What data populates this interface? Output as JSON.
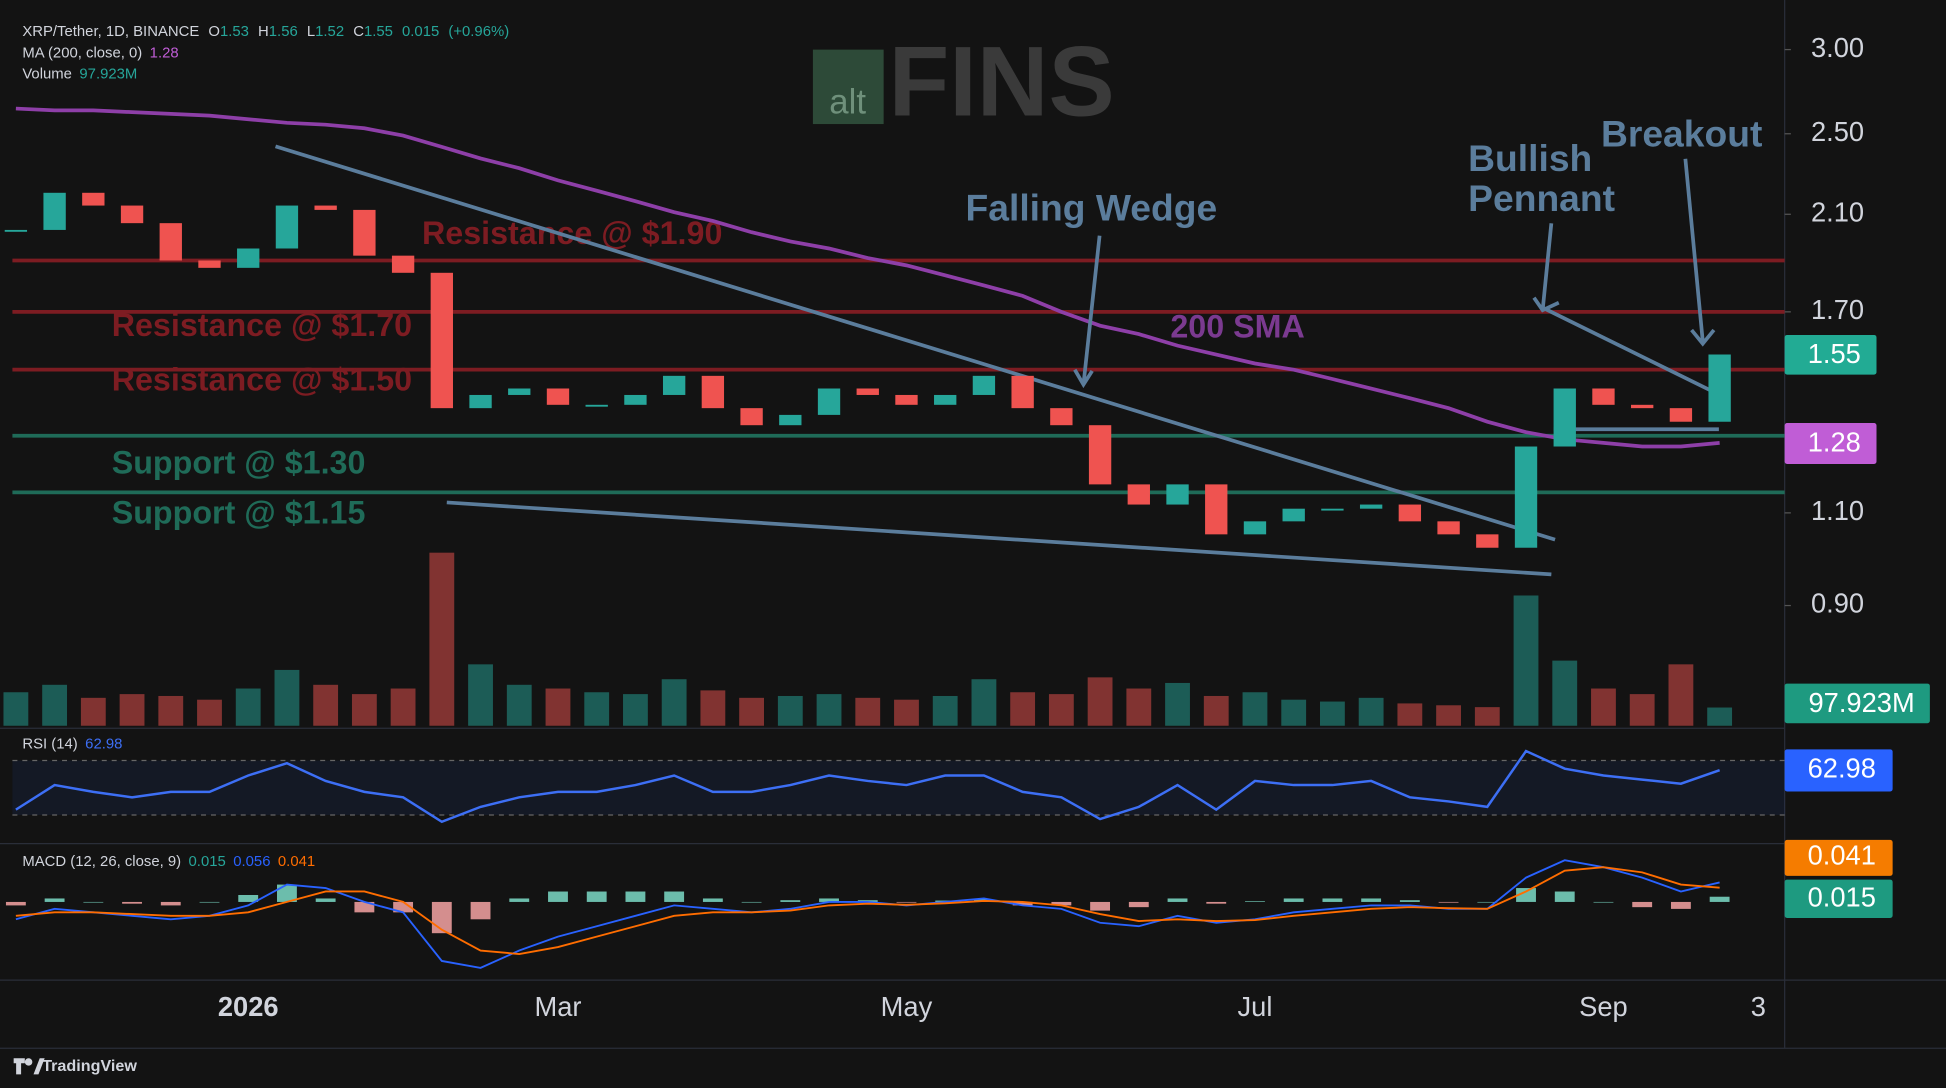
{
  "chart_data": {
    "type": "candlestick",
    "header": {
      "symbol": "XRP/Tether, 1D, BINANCE",
      "open_label": "O",
      "open": 1.53,
      "high_label": "H",
      "high": 1.56,
      "low_label": "L",
      "low": 1.52,
      "close_label": "C",
      "close": 1.55,
      "change": 0.015,
      "change_pct": "(+0.96%)"
    },
    "categories": [
      null,
      null,
      null,
      null,
      null,
      null,
      "2026",
      null,
      null,
      null,
      null,
      null,
      null,
      null,
      "Mar",
      null,
      null,
      null,
      null,
      null,
      null,
      null,
      null,
      "May",
      null,
      null,
      null,
      null,
      null,
      null,
      null,
      null,
      "Jul",
      null,
      null,
      null,
      null,
      null,
      null,
      null,
      null,
      "Sep",
      null,
      null,
      null,
      "3"
    ],
    "closes": [
      2.03,
      2.2,
      2.14,
      2.06,
      1.9,
      1.87,
      1.95,
      2.14,
      2.12,
      1.92,
      1.85,
      1.38,
      1.42,
      1.44,
      1.39,
      1.39,
      1.42,
      1.48,
      1.38,
      1.33,
      1.36,
      1.44,
      1.42,
      1.39,
      1.42,
      1.48,
      1.38,
      1.33,
      1.17,
      1.12,
      1.17,
      1.05,
      1.08,
      1.11,
      1.11,
      1.12,
      1.08,
      1.05,
      1.02,
      1.27,
      1.44,
      1.39,
      1.38,
      1.34,
      1.55,
      null
    ],
    "up_color": "#26a69a",
    "down_color": "#ef5350",
    "log_scale": true,
    "ylim": [
      0.69,
      3.34
    ],
    "yticks": [
      {
        "value": 3,
        "label": "3.00"
      },
      {
        "value": 2.5,
        "label": "2.50"
      },
      {
        "value": 2.1,
        "label": "2.10"
      },
      {
        "value": 1.7,
        "label": "1.70"
      },
      {
        "value": 1.1,
        "label": "1.10"
      },
      {
        "value": 0.9,
        "label": "0.90"
      }
    ],
    "grid": false,
    "ma": {
      "label": "MA (200, close, 0)",
      "color": "#8e3fa8",
      "values": [
        2.64,
        2.63,
        2.63,
        2.62,
        2.61,
        2.6,
        2.58,
        2.56,
        2.55,
        2.53,
        2.49,
        2.43,
        2.37,
        2.32,
        2.26,
        2.21,
        2.16,
        2.11,
        2.07,
        2.02,
        1.98,
        1.95,
        1.91,
        1.88,
        1.84,
        1.8,
        1.76,
        1.7,
        1.65,
        1.62,
        1.58,
        1.55,
        1.52,
        1.5,
        1.47,
        1.44,
        1.41,
        1.38,
        1.34,
        1.31,
        1.29,
        1.28,
        1.27,
        1.27,
        1.28,
        null
      ]
    },
    "volume": {
      "label": "Volume",
      "last_label": "97.923M",
      "ylim": [
        0,
        1200
      ],
      "values": [
        180,
        220,
        150,
        170,
        160,
        140,
        200,
        300,
        220,
        170,
        200,
        930,
        330,
        220,
        200,
        180,
        170,
        250,
        190,
        150,
        160,
        170,
        150,
        140,
        160,
        250,
        180,
        170,
        260,
        200,
        230,
        160,
        180,
        140,
        130,
        150,
        120,
        110,
        100,
        700,
        350,
        200,
        170,
        330,
        97.923,
        null
      ]
    },
    "levels": [
      {
        "label": "Resistance @ $1.90",
        "value": 1.9,
        "color": "#7d1c22"
      },
      {
        "label": "Resistance @ $1.70",
        "value": 1.7,
        "color": "#7d1c22"
      },
      {
        "label": "Resistance @ $1.50",
        "value": 1.5,
        "color": "#7d1c22"
      },
      {
        "label": "Support @ $1.30",
        "value": 1.3,
        "color": "#1f6b58"
      },
      {
        "label": "Support @ $1.15",
        "value": 1.15,
        "color": "#1f6b58"
      }
    ],
    "annotations": [
      "Falling Wedge",
      "200 SMA",
      "Bullish",
      "Pennant",
      "Breakout"
    ],
    "watermark": [
      "alt",
      "FINS"
    ],
    "rsi": {
      "label": "RSI (14)",
      "color": "#3d6ff5",
      "ylim": [
        9,
        91
      ],
      "bands": [
        30,
        70
      ],
      "values": [
        34,
        52,
        47,
        43,
        47,
        47,
        59,
        68,
        55,
        47,
        43,
        25,
        36,
        43,
        47,
        47,
        52,
        59,
        47,
        47,
        52,
        59,
        55,
        52,
        59,
        59,
        47,
        43,
        27,
        36,
        52,
        34,
        55,
        52,
        52,
        55,
        43,
        40,
        36,
        77,
        64,
        59,
        56,
        53,
        62.98,
        null
      ]
    },
    "macd": {
      "label": "MACD (12, 26, close, 9)",
      "macd_color": "#2962ff",
      "signal_color": "#ff6d00",
      "ylim": [
        -0.225,
        0.168
      ],
      "histogram": [
        -0.01,
        0.01,
        0,
        -0.005,
        -0.01,
        0,
        0.02,
        0.05,
        0.01,
        -0.03,
        -0.03,
        -0.09,
        -0.05,
        0.01,
        0.03,
        0.03,
        0.03,
        0.03,
        0.01,
        0,
        0.005,
        0.01,
        0.005,
        -0.002,
        0.004,
        0.007,
        -0.01,
        -0.01,
        -0.025,
        -0.015,
        0.01,
        -0.005,
        0.002,
        0.01,
        0.01,
        0.01,
        0.005,
        -0.002,
        0,
        0.04,
        0.03,
        0,
        -0.015,
        -0.02,
        0.015,
        null
      ],
      "macd": [
        -0.05,
        -0.02,
        -0.03,
        -0.04,
        -0.05,
        -0.04,
        -0.01,
        0.05,
        0.04,
        0,
        -0.03,
        -0.17,
        -0.19,
        -0.14,
        -0.1,
        -0.07,
        -0.04,
        -0.01,
        -0.02,
        -0.03,
        -0.02,
        0,
        0,
        -0.01,
        0,
        0.01,
        -0.01,
        -0.02,
        -0.06,
        -0.07,
        -0.04,
        -0.06,
        -0.05,
        -0.03,
        -0.02,
        -0.01,
        -0.01,
        -0.02,
        -0.02,
        0.07,
        0.12,
        0.1,
        0.07,
        0.03,
        0.056,
        null
      ],
      "signal": [
        -0.04,
        -0.03,
        -0.03,
        -0.035,
        -0.04,
        -0.04,
        -0.03,
        0,
        0.03,
        0.03,
        0,
        -0.08,
        -0.14,
        -0.15,
        -0.13,
        -0.1,
        -0.07,
        -0.04,
        -0.03,
        -0.03,
        -0.025,
        -0.01,
        -0.005,
        -0.008,
        -0.004,
        0.003,
        0,
        -0.01,
        -0.035,
        -0.055,
        -0.05,
        -0.055,
        -0.052,
        -0.04,
        -0.03,
        -0.02,
        -0.015,
        -0.018,
        -0.02,
        0.03,
        0.09,
        0.1,
        0.085,
        0.05,
        0.041,
        null
      ]
    }
  },
  "footer": {
    "brand": "TradingView"
  }
}
